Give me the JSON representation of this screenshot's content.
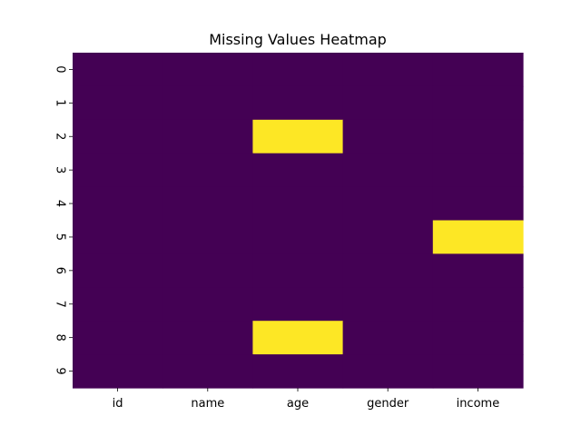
{
  "chart_data": {
    "type": "heatmap",
    "title": "Missing Values Heatmap",
    "xlabel": "",
    "ylabel": "",
    "columns": [
      "id",
      "name",
      "age",
      "gender",
      "income"
    ],
    "rows": [
      "0",
      "1",
      "2",
      "3",
      "4",
      "5",
      "6",
      "7",
      "8",
      "9"
    ],
    "values": [
      [
        0,
        0,
        0,
        0,
        0
      ],
      [
        0,
        0,
        0,
        0,
        0
      ],
      [
        0,
        0,
        1,
        0,
        0
      ],
      [
        0,
        0,
        0,
        0,
        0
      ],
      [
        0,
        0,
        0,
        0,
        0
      ],
      [
        0,
        0,
        0,
        0,
        1
      ],
      [
        0,
        0,
        0,
        0,
        0
      ],
      [
        0,
        0,
        0,
        0,
        0
      ],
      [
        0,
        0,
        1,
        0,
        0
      ],
      [
        0,
        0,
        0,
        0,
        0
      ]
    ],
    "colormap": {
      "0": "#440154",
      "1": "#fde725"
    },
    "colorbar": false,
    "grid": false
  }
}
